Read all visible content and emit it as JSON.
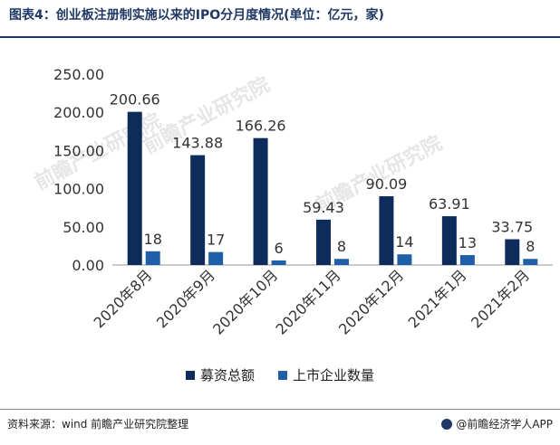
{
  "header": {
    "title": "图表4：创业板注册制实施以来的IPO分月度情况(单位：亿元，家)"
  },
  "footer": {
    "source": "资料来源：wind 前瞻产业研究院整理",
    "brand": "@前瞻经济学人APP"
  },
  "watermark": {
    "text": "前瞻产业研究院"
  },
  "colors": {
    "fundraising": "#0d2c5c",
    "listed": "#1f5fa8",
    "axis": "#9a9a9a",
    "text": "#333333"
  },
  "chart_data": {
    "type": "bar",
    "categories": [
      "2020年8月",
      "2020年9月",
      "2020年10月",
      "2020年11月",
      "2020年12月",
      "2021年1月",
      "2021年2月"
    ],
    "series": [
      {
        "name": "募资总额",
        "values": [
          200.66,
          143.88,
          166.26,
          59.43,
          90.09,
          63.91,
          33.75
        ],
        "labels": [
          "200.66",
          "143.88",
          "166.26",
          "59.43",
          "90.09",
          "63.91",
          "33.75"
        ]
      },
      {
        "name": "上市企业数量",
        "values": [
          18,
          17,
          6,
          8,
          14,
          13,
          8
        ],
        "labels": [
          "18",
          "17",
          "6",
          "8",
          "14",
          "13",
          "8"
        ]
      }
    ],
    "ylim": [
      0,
      250
    ],
    "yticks": [
      "0.00",
      "50.00",
      "100.00",
      "150.00",
      "200.00",
      "250.00"
    ],
    "ytick_values": [
      0,
      50,
      100,
      150,
      200,
      250
    ],
    "grid": false,
    "legend_position": "bottom"
  }
}
